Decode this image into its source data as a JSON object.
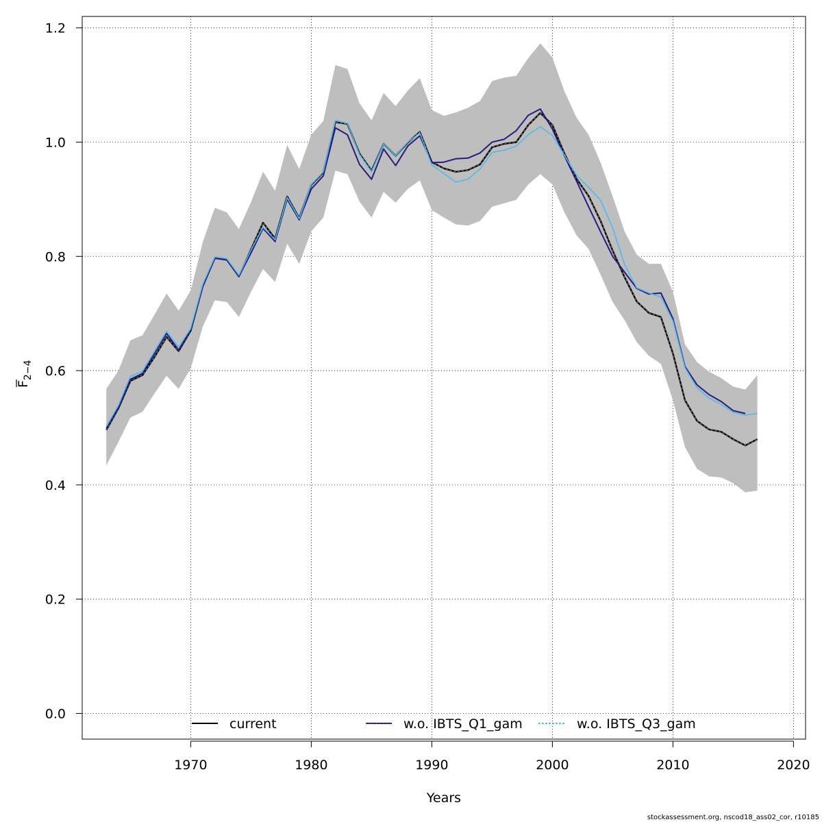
{
  "chart_data": {
    "type": "line",
    "xlabel": "Years",
    "ylabel_main": "F",
    "ylabel_sub": "2−4",
    "xlim": [
      1961,
      2021
    ],
    "ylim": [
      -0.045,
      1.22
    ],
    "x_ticks": [
      1970,
      1980,
      1990,
      2000,
      2010,
      2020
    ],
    "x_tick_labels": [
      "1970",
      "1980",
      "1990",
      "2000",
      "2010",
      "2020"
    ],
    "y_ticks": [
      0.0,
      0.2,
      0.4,
      0.6,
      0.8,
      1.0,
      1.2
    ],
    "y_tick_labels": [
      "0.0",
      "0.2",
      "0.4",
      "0.6",
      "0.8",
      "1.0",
      "1.2"
    ],
    "grid": true,
    "legend_position": "bottom",
    "credit": "stockassessment.org, nscod18_ass02_cor, r10185",
    "x": [
      1963,
      1964,
      1965,
      1966,
      1967,
      1968,
      1969,
      1970,
      1971,
      1972,
      1973,
      1974,
      1975,
      1976,
      1977,
      1978,
      1979,
      1980,
      1981,
      1982,
      1983,
      1984,
      1985,
      1986,
      1987,
      1988,
      1989,
      1990,
      1991,
      1992,
      1993,
      1994,
      1995,
      1996,
      1997,
      1998,
      1999,
      2000,
      2001,
      2002,
      2003,
      2004,
      2005,
      2006,
      2007,
      2008,
      2009,
      2010,
      2011,
      2012,
      2013,
      2014,
      2015,
      2016,
      2017
    ],
    "band": {
      "name": "confidence band",
      "color": "#bebebe",
      "upper": [
        0.568,
        0.6,
        0.653,
        0.662,
        0.698,
        0.735,
        0.705,
        0.74,
        0.825,
        0.885,
        0.877,
        0.848,
        0.895,
        0.948,
        0.915,
        0.995,
        0.953,
        1.013,
        1.037,
        1.135,
        1.128,
        1.068,
        1.038,
        1.086,
        1.063,
        1.09,
        1.112,
        1.056,
        1.046,
        1.052,
        1.06,
        1.072,
        1.107,
        1.113,
        1.116,
        1.147,
        1.173,
        1.148,
        1.089,
        1.043,
        1.013,
        0.964,
        0.905,
        0.843,
        0.803,
        0.787,
        0.787,
        0.738,
        0.646,
        0.615,
        0.598,
        0.587,
        0.572,
        0.567,
        0.592
      ],
      "lower": [
        0.434,
        0.475,
        0.518,
        0.528,
        0.56,
        0.591,
        0.568,
        0.604,
        0.677,
        0.723,
        0.72,
        0.694,
        0.738,
        0.778,
        0.755,
        0.822,
        0.787,
        0.844,
        0.868,
        0.95,
        0.944,
        0.896,
        0.868,
        0.913,
        0.894,
        0.918,
        0.933,
        0.881,
        0.868,
        0.856,
        0.854,
        0.862,
        0.887,
        0.893,
        0.899,
        0.926,
        0.944,
        0.926,
        0.877,
        0.837,
        0.813,
        0.768,
        0.72,
        0.688,
        0.65,
        0.626,
        0.612,
        0.548,
        0.466,
        0.428,
        0.415,
        0.413,
        0.403,
        0.387,
        0.39
      ]
    },
    "series": [
      {
        "name": "current",
        "color": "#000000",
        "values": [
          0.496,
          0.534,
          0.582,
          0.592,
          0.624,
          0.659,
          0.634,
          0.67,
          0.748,
          0.797,
          0.794,
          0.765,
          0.812,
          0.859,
          0.831,
          0.905,
          0.867,
          0.925,
          0.947,
          1.035,
          1.032,
          0.98,
          0.95,
          0.997,
          0.976,
          0.999,
          1.018,
          0.965,
          0.954,
          0.948,
          0.951,
          0.961,
          0.991,
          0.997,
          1.0,
          1.03,
          1.051,
          1.03,
          0.98,
          0.936,
          0.906,
          0.862,
          0.81,
          0.763,
          0.721,
          0.701,
          0.694,
          0.63,
          0.548,
          0.512,
          0.497,
          0.493,
          0.48,
          0.469,
          0.48
        ]
      },
      {
        "name": "w.o. IBTS_Q1_gam",
        "color": "#2a1a7e",
        "values": [
          0.499,
          0.536,
          0.585,
          0.595,
          0.63,
          0.665,
          0.636,
          0.672,
          0.747,
          0.797,
          0.794,
          0.765,
          0.806,
          0.849,
          0.826,
          0.9,
          0.864,
          0.918,
          0.941,
          1.025,
          1.013,
          0.961,
          0.935,
          0.988,
          0.959,
          0.993,
          1.011,
          0.964,
          0.965,
          0.971,
          0.972,
          0.981,
          1.0,
          1.005,
          1.02,
          1.047,
          1.058,
          1.023,
          0.976,
          0.932,
          0.887,
          0.843,
          0.8,
          0.772,
          0.744,
          0.734,
          0.736,
          0.691,
          0.607,
          0.575,
          0.558,
          0.546,
          0.53,
          0.525,
          null
        ]
      },
      {
        "name": "w.o. IBTS_Q3_gam",
        "color": "#4fb9ee",
        "values": [
          0.502,
          0.539,
          0.59,
          0.599,
          0.634,
          0.669,
          0.641,
          0.674,
          0.751,
          0.799,
          0.796,
          0.767,
          0.811,
          0.851,
          0.829,
          0.903,
          0.866,
          0.926,
          0.948,
          1.038,
          1.033,
          0.978,
          0.948,
          0.997,
          0.976,
          1.0,
          1.016,
          0.96,
          0.945,
          0.93,
          0.935,
          0.953,
          0.982,
          0.986,
          0.993,
          1.013,
          1.027,
          1.012,
          0.977,
          0.942,
          0.921,
          0.898,
          0.85,
          0.785,
          0.745,
          0.736,
          0.729,
          0.687,
          0.605,
          0.57,
          0.552,
          0.541,
          0.527,
          0.522,
          0.525
        ]
      }
    ]
  }
}
